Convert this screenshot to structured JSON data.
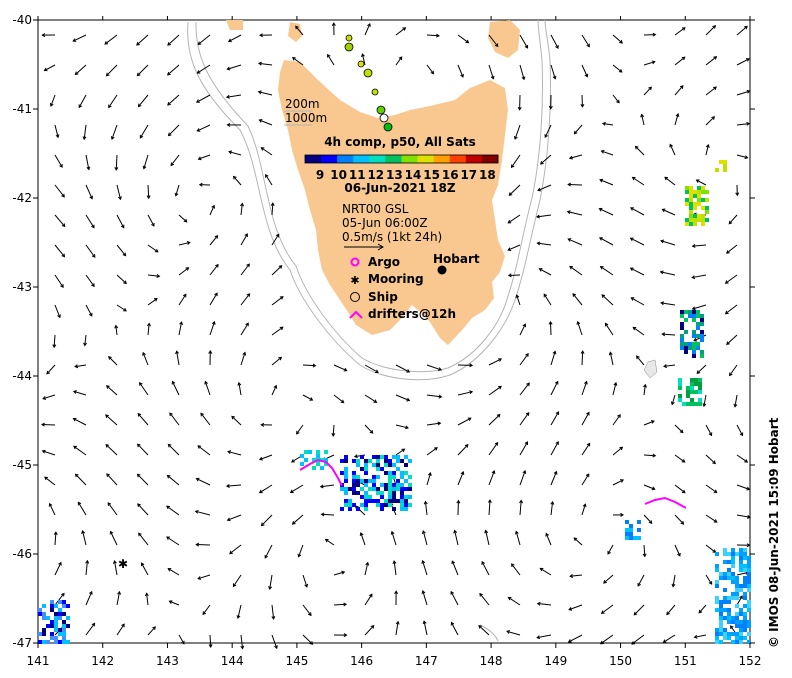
{
  "map": {
    "lon_ticks": [
      "141",
      "142",
      "143",
      "144",
      "145",
      "146",
      "147",
      "148",
      "149",
      "150",
      "151",
      "152"
    ],
    "lat_ticks": [
      "-40",
      "-41",
      "-42",
      "-43",
      "-44",
      "-45",
      "-46",
      "-47"
    ],
    "lon_range": [
      141,
      152
    ],
    "lat_range": [
      -47,
      -40
    ]
  },
  "legend": {
    "depth_200": "200m",
    "depth_1000": "1000m",
    "sst_title": "4h comp, p50, All Sats",
    "colorbar_labels": [
      "9",
      "10",
      "11",
      "12",
      "13",
      "14",
      "15",
      "16",
      "17",
      "18"
    ],
    "date_title": "06-Jun-2021 18Z",
    "current_source": "NRT00 GSL",
    "current_date": "05-Jun 06:00Z",
    "scale_text": "0.5m/s (1kt 24h)",
    "argo": "Argo",
    "mooring": "Mooring",
    "ship": "Ship",
    "drifters": "drifters@12h"
  },
  "places": {
    "hobart": "Hobart"
  },
  "credit": "© IMOS 08-Jun-2021 15:09 Hobart",
  "colors": {
    "land": "#f8c890",
    "bathy": "#b4b4b4",
    "drifter": "#ff00ff",
    "argo": "#ff00ff",
    "colorbar": [
      "#000080",
      "#0000ff",
      "#0080ff",
      "#00c0ff",
      "#00e0c0",
      "#00c060",
      "#80e000",
      "#e0e000",
      "#ffa000",
      "#ff4000",
      "#c00000",
      "#800000"
    ]
  }
}
